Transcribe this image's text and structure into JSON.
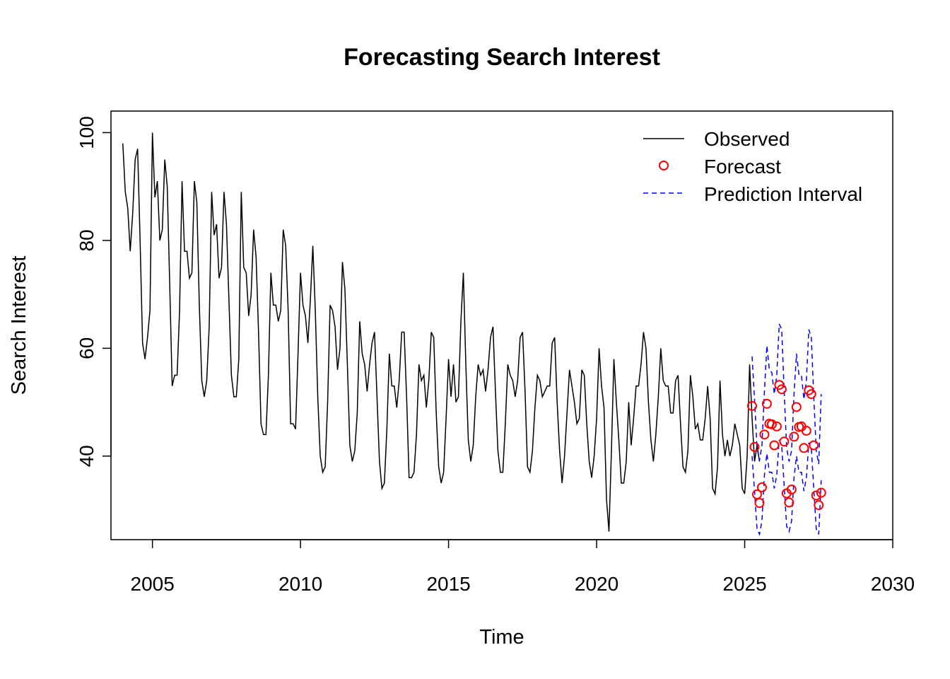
{
  "chart_data": {
    "type": "line",
    "title": "Forecasting Search Interest",
    "xlabel": "Time",
    "ylabel": "Search Interest",
    "xlim": [
      2003.6,
      2030.0
    ],
    "ylim": [
      24.5,
      104.0
    ],
    "x_ticks": [
      2005,
      2010,
      2015,
      2020,
      2025,
      2030
    ],
    "x_tick_labels": [
      "2005",
      "2010",
      "2015",
      "2020",
      "2025",
      "2030"
    ],
    "y_ticks": [
      40,
      60,
      80,
      100
    ],
    "y_tick_labels": [
      "40",
      "60",
      "80",
      "100"
    ],
    "grid": false,
    "legend_position": "top-right",
    "legend": {
      "observed": "Observed",
      "forecast": "Forecast",
      "interval": "Prediction Interval"
    },
    "colors": {
      "observed": "#000000",
      "forecast": "#ff0000",
      "interval": "#0000ff"
    },
    "observed_start": 2004.0,
    "frequency": 12,
    "observed": [
      98,
      89,
      86,
      78,
      85,
      95,
      97,
      80,
      61,
      58,
      62,
      67,
      100,
      88,
      91,
      80,
      82,
      95,
      90,
      72,
      53,
      55,
      55,
      67,
      91,
      78,
      78,
      73,
      74,
      91,
      87,
      68,
      54,
      51,
      54,
      64,
      89,
      81,
      83,
      73,
      75,
      89,
      83,
      69,
      55,
      51,
      51,
      58,
      89,
      75,
      74,
      66,
      70,
      82,
      77,
      63,
      46,
      44,
      44,
      55,
      74,
      68,
      68,
      65,
      67,
      82,
      79,
      67,
      46,
      46,
      45,
      59,
      74,
      68,
      66,
      61,
      69,
      79,
      67,
      51,
      40,
      37,
      38,
      50,
      68,
      67,
      64,
      56,
      60,
      76,
      71,
      57,
      42,
      39,
      41,
      48,
      65,
      59,
      57,
      52,
      57,
      61,
      63,
      51,
      39,
      34,
      35,
      45,
      59,
      53,
      53,
      49,
      54,
      63,
      63,
      51,
      36,
      36,
      37,
      44,
      57,
      54,
      55,
      49,
      54,
      63,
      62,
      48,
      38,
      35,
      37,
      47,
      58,
      51,
      57,
      50,
      51,
      65,
      74,
      57,
      43,
      39,
      42,
      51,
      57,
      55,
      56,
      52,
      56,
      62,
      64,
      52,
      41,
      37,
      37,
      46,
      57,
      55,
      54,
      51,
      54,
      62,
      63,
      52,
      38,
      37,
      41,
      49,
      55,
      54,
      51,
      52,
      53,
      53,
      61,
      62,
      50,
      41,
      35,
      40,
      48,
      56,
      53,
      50,
      46,
      47,
      56,
      55,
      46,
      39,
      36,
      40,
      47,
      60,
      53,
      49,
      32,
      26,
      41,
      58,
      50,
      43,
      35,
      35,
      39,
      50,
      42,
      47,
      53,
      53,
      57,
      63,
      60,
      50,
      43,
      39,
      44,
      51,
      60,
      54,
      53,
      53,
      48,
      48,
      54,
      55,
      46,
      38,
      37,
      41,
      55,
      51,
      45,
      46,
      43,
      43,
      47,
      53,
      47,
      34,
      33,
      38,
      54,
      44,
      40,
      43,
      40,
      42,
      46,
      44,
      42,
      34,
      33,
      40,
      57,
      47,
      39,
      42,
      39
    ],
    "forecast_start": 2025.25,
    "forecast": [
      49.3,
      41.7,
      32.9,
      31.3,
      34.2,
      44.0,
      49.7,
      46.0,
      45.9,
      42.0,
      45.5,
      53.2,
      52.4,
      42.7,
      33.1,
      31.4,
      33.8,
      43.6,
      49.1,
      45.4,
      45.5,
      41.5,
      44.7,
      52.2,
      51.5,
      42.0,
      32.7,
      30.9,
      33.2
    ],
    "interval_upper": [
      58.5,
      50.5,
      41.5,
      39.2,
      42.0,
      52.0,
      60.5,
      56.0,
      55.5,
      51.5,
      55.0,
      64.5,
      63.5,
      52.0,
      41.5,
      39.0,
      41.0,
      51.5,
      59.0,
      55.0,
      55.0,
      50.5,
      54.0,
      63.5,
      62.0,
      51.0,
      41.0,
      38.5,
      51.5
    ],
    "interval_lower": [
      40.0,
      33.5,
      26.5,
      25.5,
      28.0,
      36.5,
      40.5,
      37.0,
      37.0,
      34.0,
      36.5,
      43.0,
      42.0,
      34.5,
      27.0,
      26.0,
      28.0,
      36.0,
      40.0,
      37.0,
      37.0,
      33.5,
      36.0,
      42.5,
      41.5,
      34.0,
      26.5,
      25.5,
      35.5
    ]
  }
}
